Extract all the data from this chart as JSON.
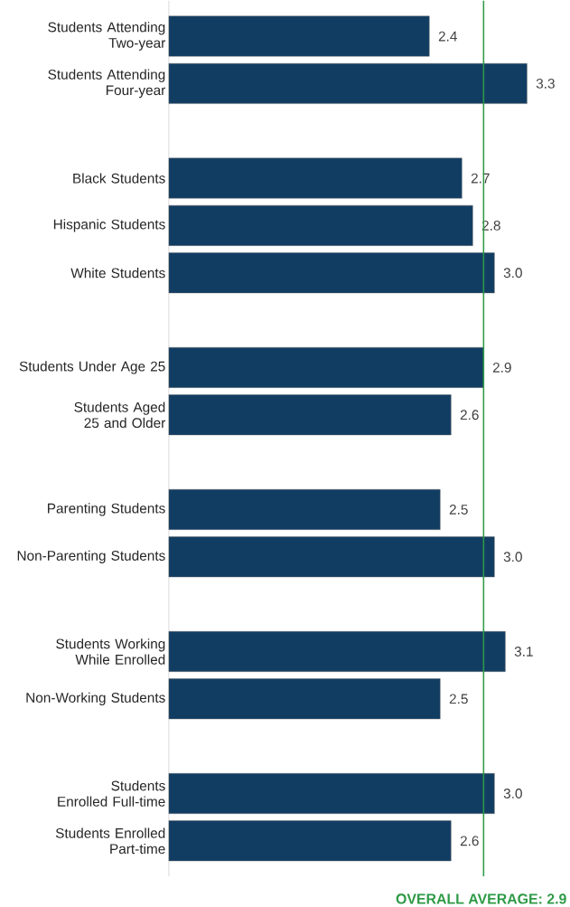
{
  "chart_data": {
    "type": "bar",
    "orientation": "horizontal",
    "categories": [
      "Students Attending Two-year",
      "Students Attending Four-year",
      null,
      "Black Students",
      "Hispanic Students",
      "White Students",
      null,
      "Students Under Age 25",
      "Students Aged 25 and Older",
      null,
      "Parenting Students",
      "Non-Parenting Students",
      null,
      "Students Working While Enrolled",
      "Non-Working Students",
      null,
      "Students Enrolled Full-time",
      "Students Enrolled Part-time"
    ],
    "values": [
      2.4,
      3.3,
      null,
      2.7,
      2.8,
      3.0,
      null,
      2.9,
      2.6,
      null,
      2.5,
      3.0,
      null,
      3.1,
      2.5,
      null,
      3.0,
      2.6
    ],
    "value_labels": [
      "2.4",
      "3.3",
      null,
      "2.7",
      "2.8",
      "3.0",
      null,
      "2.9",
      "2.6",
      null,
      "2.5",
      "3.0",
      null,
      "3.1",
      "2.5",
      null,
      "3.0",
      "2.6"
    ],
    "color": "#123d63",
    "tick_labels": "y",
    "ref_lines": [
      {
        "axis": "x",
        "value": 2.9,
        "label": "OVERALL AVERAGE: 2.9",
        "color": "#2e9a47"
      }
    ]
  }
}
